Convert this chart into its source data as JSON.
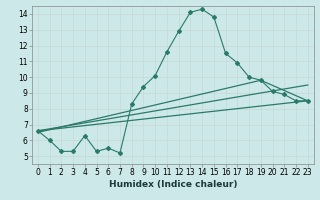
{
  "xlabel": "Humidex (Indice chaleur)",
  "ylabel": "",
  "xlim": [
    -0.5,
    23.5
  ],
  "ylim": [
    4.5,
    14.5
  ],
  "xticks": [
    0,
    1,
    2,
    3,
    4,
    5,
    6,
    7,
    8,
    9,
    10,
    11,
    12,
    13,
    14,
    15,
    16,
    17,
    18,
    19,
    20,
    21,
    22,
    23
  ],
  "yticks": [
    5,
    6,
    7,
    8,
    9,
    10,
    11,
    12,
    13,
    14
  ],
  "bg_color": "#cde8e8",
  "grid_color": "#c8d8d8",
  "line_color": "#2a7a6a",
  "line1_x": [
    0,
    1,
    2,
    3,
    4,
    5,
    6,
    7,
    8,
    9,
    10,
    11,
    12,
    13,
    14,
    15,
    16,
    17,
    18,
    19,
    20,
    21,
    22,
    23
  ],
  "line1_y": [
    6.6,
    6.0,
    5.3,
    5.3,
    6.3,
    5.3,
    5.5,
    5.2,
    8.3,
    9.4,
    10.1,
    11.6,
    12.9,
    14.1,
    14.3,
    13.8,
    11.5,
    10.9,
    10.0,
    9.8,
    9.1,
    8.9,
    8.5,
    8.5
  ],
  "line2_x": [
    0,
    23
  ],
  "line2_y": [
    6.6,
    9.5
  ],
  "line3_x": [
    0,
    23
  ],
  "line3_y": [
    6.6,
    8.5
  ],
  "line4_x": [
    0,
    19,
    23
  ],
  "line4_y": [
    6.5,
    9.8,
    8.5
  ]
}
